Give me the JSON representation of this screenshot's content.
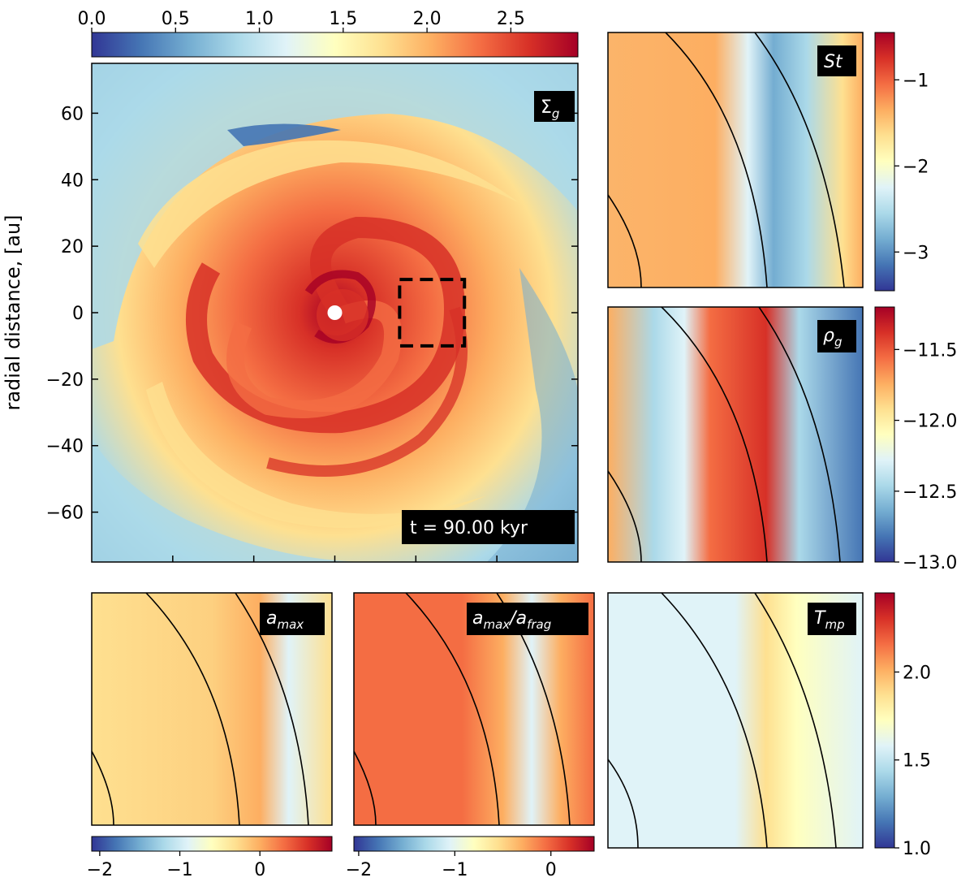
{
  "figure": {
    "ylabel": "radial distance, [au]",
    "time_label": "t = 90.00 kyr"
  },
  "colors": {
    "colormap": [
      "#313695",
      "#4575b4",
      "#74add1",
      "#abd9e9",
      "#e0f3f8",
      "#ffffbf",
      "#fee090",
      "#fdae61",
      "#f46d43",
      "#d73027",
      "#a50026"
    ],
    "contour": "#000000",
    "badge": "#000000",
    "star": "#ffffff"
  },
  "chart_data": [
    {
      "type": "heatmap",
      "panel": "main",
      "label_main": "Σ",
      "label_sub": "g",
      "ylabel": "radial distance, [au]",
      "ylim": [
        -75,
        75
      ],
      "xlim": [
        -75,
        75
      ],
      "yticks": [
        60,
        40,
        20,
        0,
        -20,
        -40,
        -60
      ],
      "ytick_labels": [
        "60",
        "40",
        "20",
        "0",
        "−20",
        "−40",
        "−60"
      ],
      "colorbar": {
        "orientation": "horizontal",
        "position": "top",
        "range": [
          0.0,
          2.9
        ],
        "ticks": [
          0.0,
          0.5,
          1.0,
          1.5,
          2.0,
          2.5
        ],
        "tick_labels": [
          "0.0",
          "0.5",
          "1.0",
          "1.5",
          "2.0",
          "2.5"
        ]
      },
      "zoom_box": {
        "x": [
          20,
          40
        ],
        "y": [
          -10,
          10
        ]
      },
      "annotation": "t = 90.00 kyr"
    },
    {
      "type": "heatmap",
      "panel": "zoom",
      "label_main": "St",
      "label_sub": "",
      "colorbar": {
        "orientation": "vertical",
        "position": "right",
        "range": [
          -3.45,
          -0.45
        ],
        "ticks": [
          -1,
          -2,
          -3
        ],
        "tick_labels": [
          "−1",
          "−2",
          "−3"
        ]
      }
    },
    {
      "type": "heatmap",
      "panel": "zoom",
      "label_main": "ρ",
      "label_sub": "g",
      "colorbar": {
        "orientation": "vertical",
        "position": "right",
        "range": [
          -13.0,
          -11.2
        ],
        "ticks": [
          -11.5,
          -12.0,
          -12.5,
          -13.0
        ],
        "tick_labels": [
          "−11.5",
          "−12.0",
          "−12.5",
          "−13.0"
        ]
      }
    },
    {
      "type": "heatmap",
      "panel": "zoom",
      "label_main": "a",
      "label_sub": "max",
      "colorbar": {
        "orientation": "horizontal",
        "position": "bottom",
        "range": [
          -2.1,
          0.9
        ],
        "ticks": [
          -2,
          -1,
          0
        ],
        "tick_labels": [
          "−2",
          "−1",
          "0"
        ]
      }
    },
    {
      "type": "heatmap",
      "panel": "zoom",
      "label_main": "a",
      "label_sub": "max",
      "label_main2": "/a",
      "label_sub2": "frag",
      "colorbar": {
        "orientation": "horizontal",
        "position": "bottom",
        "range": [
          -2.05,
          0.45
        ],
        "ticks": [
          -2,
          -1,
          0
        ],
        "tick_labels": [
          "−2",
          "−1",
          "0"
        ]
      }
    },
    {
      "type": "heatmap",
      "panel": "zoom",
      "label_main": "T",
      "label_sub": "mp",
      "colorbar": {
        "orientation": "vertical",
        "position": "right",
        "range": [
          1.0,
          2.45
        ],
        "ticks": [
          2.0,
          1.5,
          1.0
        ],
        "tick_labels": [
          "2.0",
          "1.5",
          "1.0"
        ]
      }
    }
  ]
}
